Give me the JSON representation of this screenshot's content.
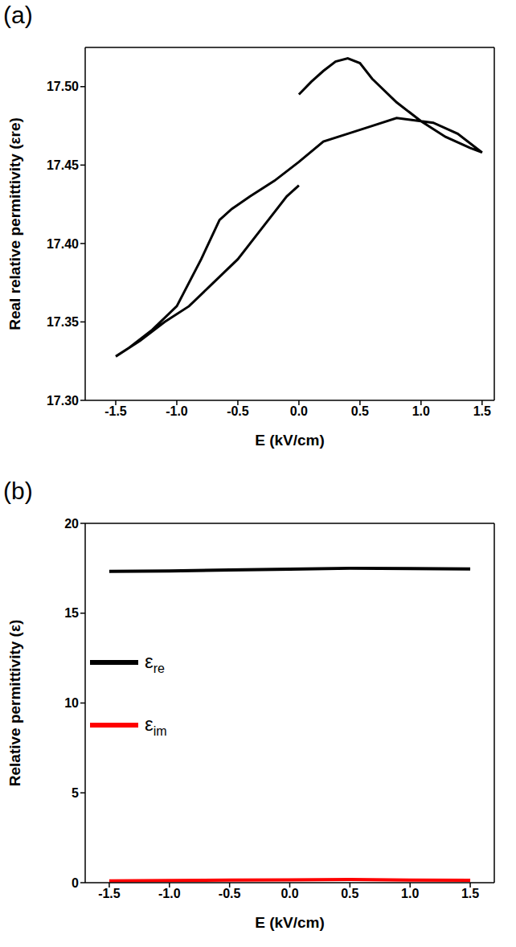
{
  "chart_data": [
    {
      "type": "line",
      "panel": "(a)",
      "x_label": "E (kV/cm)",
      "y_label": "Real relative permittivity (εre)",
      "xlim": [
        -1.75,
        1.6
      ],
      "xticks": [
        {
          "value": -1.5,
          "label": "-1.5"
        },
        {
          "value": -1,
          "label": "-1.0"
        },
        {
          "value": -0.5,
          "label": "-0.5"
        },
        {
          "value": 0,
          "label": "0.0"
        },
        {
          "value": 0.5,
          "label": "0.5"
        },
        {
          "value": 1,
          "label": "1.0"
        },
        {
          "value": 1.5,
          "label": "1.5"
        }
      ],
      "ylim": [
        17.3,
        17.525
      ],
      "yticks": [
        {
          "value": 17.3,
          "label": "17.30"
        },
        {
          "value": 17.35,
          "label": "17.35"
        },
        {
          "value": 17.4,
          "label": "17.40"
        },
        {
          "value": 17.45,
          "label": "17.45"
        },
        {
          "value": 17.5,
          "label": "17.50"
        }
      ],
      "series": [
        {
          "name": "εre",
          "color": "#000000",
          "x": [
            0,
            0.1,
            0.2,
            0.3,
            0.4,
            0.5,
            0.6,
            0.8,
            1.0,
            1.2,
            1.4,
            1.5,
            1.3,
            1.1,
            0.9,
            0.8,
            0.6,
            0.4,
            0.2,
            0,
            -0.2,
            -0.4,
            -0.55,
            -0.65,
            -0.8,
            -1.0,
            -1.2,
            -1.4,
            -1.5,
            -1.3,
            -1.1,
            -0.9,
            -0.7,
            -0.5,
            -0.3,
            -0.1,
            0
          ],
          "values": [
            17.495,
            17.503,
            17.51,
            17.516,
            17.518,
            17.515,
            17.505,
            17.49,
            17.478,
            17.468,
            17.461,
            17.458,
            17.47,
            17.477,
            17.479,
            17.48,
            17.475,
            17.47,
            17.465,
            17.452,
            17.44,
            17.43,
            17.422,
            17.415,
            17.39,
            17.36,
            17.345,
            17.333,
            17.328,
            17.338,
            17.35,
            17.36,
            17.375,
            17.39,
            17.41,
            17.43,
            17.437
          ]
        }
      ]
    },
    {
      "type": "line",
      "panel": "(b)",
      "x_label": "E (kV/cm)",
      "y_label": "Relative permittivity (ε)",
      "xlim": [
        -1.7,
        1.7
      ],
      "xticks": [
        {
          "value": -1.5,
          "label": "-1.5"
        },
        {
          "value": -1,
          "label": "-1.0"
        },
        {
          "value": -0.5,
          "label": "-0.5"
        },
        {
          "value": 0,
          "label": "0.0"
        },
        {
          "value": 0.5,
          "label": "0.5"
        },
        {
          "value": 1,
          "label": "1.0"
        },
        {
          "value": 1.5,
          "label": "1.5"
        }
      ],
      "ylim": [
        0,
        20
      ],
      "yticks": [
        0,
        5,
        10,
        15,
        20
      ],
      "legend": "left",
      "series": [
        {
          "name": "εre",
          "color": "#000000",
          "x": [
            -1.5,
            -1.0,
            -0.5,
            0,
            0.5,
            1.0,
            1.5
          ],
          "values": [
            17.33,
            17.35,
            17.4,
            17.45,
            17.5,
            17.48,
            17.46
          ]
        },
        {
          "name": "εim",
          "color": "#ff0000",
          "x": [
            -1.5,
            -1.0,
            -0.5,
            0,
            0.5,
            1.0,
            1.5
          ],
          "values": [
            0.1,
            0.12,
            0.14,
            0.16,
            0.18,
            0.15,
            0.13
          ]
        }
      ]
    }
  ]
}
